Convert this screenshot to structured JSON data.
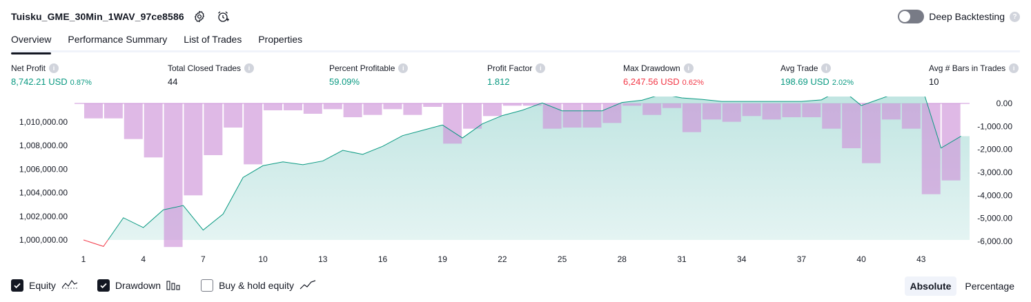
{
  "header": {
    "strategy_name": "Tuisku_GME_30Min_1WAV_97ce8586",
    "deep_backtesting_label": "Deep Backtesting",
    "help_glyph": "?"
  },
  "tabs": [
    {
      "label": "Overview",
      "active": true
    },
    {
      "label": "Performance Summary",
      "active": false
    },
    {
      "label": "List of Trades",
      "active": false
    },
    {
      "label": "Properties",
      "active": false
    }
  ],
  "stats": [
    {
      "label": "Net Profit",
      "value": "8,742.21 USD",
      "pct": "0.87%",
      "tone": "pos"
    },
    {
      "label": "Total Closed Trades",
      "value": "44",
      "pct": "",
      "tone": "neu"
    },
    {
      "label": "Percent Profitable",
      "value": "59.09%",
      "pct": "",
      "tone": "pos"
    },
    {
      "label": "Profit Factor",
      "value": "1.812",
      "pct": "",
      "tone": "pos"
    },
    {
      "label": "Max Drawdown",
      "value": "6,247.56 USD",
      "pct": "0.62%",
      "tone": "neg"
    },
    {
      "label": "Avg Trade",
      "value": "198.69 USD",
      "pct": "2.02%",
      "tone": "pos"
    },
    {
      "label": "Avg # Bars in Trades",
      "value": "10",
      "pct": "",
      "tone": "neu"
    }
  ],
  "info_glyph": "i",
  "chart_data": {
    "type": "area",
    "x_ticks": [
      "1",
      "4",
      "7",
      "10",
      "13",
      "16",
      "19",
      "22",
      "25",
      "28",
      "31",
      "34",
      "37",
      "40",
      "43"
    ],
    "left_axis": {
      "ticks": [
        "1,000,000.00",
        "1,002,000.00",
        "1,004,000.00",
        "1,006,000.00",
        "1,008,000.00",
        "1,010,000.00"
      ],
      "range": [
        999000,
        1011600
      ]
    },
    "right_axis": {
      "ticks": [
        "0.00",
        "-1,000.00",
        "-2,000.00",
        "-3,000.00",
        "-4,000.00",
        "-5,000.00",
        "-6,000.00"
      ],
      "range": [
        -6000,
        0
      ]
    },
    "series": [
      {
        "name": "Equity",
        "color": "#089981",
        "x": [
          1,
          2,
          3,
          4,
          5,
          6,
          7,
          8,
          9,
          10,
          11,
          12,
          13,
          14,
          15,
          16,
          17,
          18,
          19,
          20,
          21,
          22,
          23,
          24,
          25,
          26,
          27,
          28,
          29,
          30,
          31,
          32,
          33,
          34,
          35,
          36,
          37,
          38,
          39,
          40,
          41,
          42,
          43,
          44,
          45
        ],
        "values": [
          1000000,
          999450,
          1001880,
          1001050,
          1002550,
          1002920,
          1000840,
          1002200,
          1005300,
          1006300,
          1006620,
          1006380,
          1006700,
          1007600,
          1007260,
          1007940,
          1008850,
          1009300,
          1009750,
          1008650,
          1009850,
          1010550,
          1011000,
          1011620,
          1010950,
          1010950,
          1010950,
          1011660,
          1011850,
          1012350,
          1012050,
          1011920,
          1011750,
          1011750,
          1011750,
          1011750,
          1011750,
          1011880,
          1012780,
          1011400,
          1012000,
          1012600,
          1013200,
          1007800,
          1008800
        ]
      },
      {
        "name": "Drawdown",
        "color": "#ce93d8",
        "x": [
          1,
          2,
          3,
          4,
          5,
          6,
          7,
          8,
          9,
          10,
          11,
          12,
          13,
          14,
          15,
          16,
          17,
          18,
          19,
          20,
          21,
          22,
          23,
          24,
          25,
          26,
          27,
          28,
          29,
          30,
          31,
          32,
          33,
          34,
          35,
          36,
          37,
          38,
          39,
          40,
          41,
          42,
          43,
          44,
          45
        ],
        "values": [
          0,
          -650,
          -650,
          -1550,
          -2350,
          -6247.56,
          -4000,
          -2250,
          -1050,
          -2650,
          -300,
          -300,
          -450,
          -250,
          -600,
          -500,
          -250,
          -500,
          -150,
          -1750,
          -1100,
          -550,
          -100,
          -100,
          -1100,
          -1050,
          -1050,
          -850,
          -100,
          -500,
          -200,
          -1250,
          -700,
          -800,
          -550,
          -700,
          -600,
          -600,
          -1100,
          -1950,
          -2600,
          -700,
          -1100,
          -3950,
          -3350
        ]
      }
    ],
    "legend": [
      {
        "label": "Equity",
        "checked": true,
        "icon": "equity-line-icon"
      },
      {
        "label": "Drawdown",
        "checked": true,
        "icon": "drawdown-bars-icon"
      },
      {
        "label": "Buy & hold equity",
        "checked": false,
        "icon": "buy-hold-line-icon"
      }
    ]
  },
  "mode": {
    "absolute_label": "Absolute",
    "percentage_label": "Percentage",
    "selected": "Absolute"
  },
  "colors": {
    "positive": "#089981",
    "negative": "#f23645",
    "drawdown_fill": "#ce93d8",
    "equity_fill": "#b2dfdb"
  }
}
